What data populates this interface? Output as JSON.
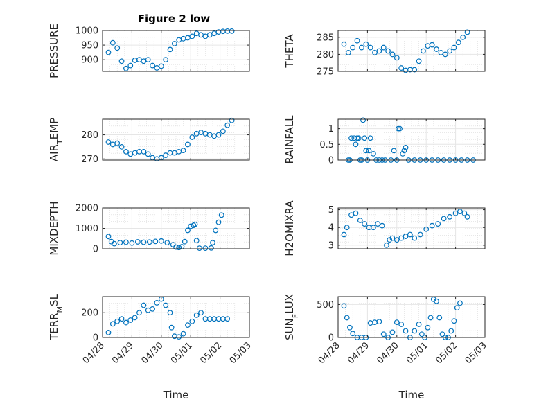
{
  "figure": {
    "title": "Figure 2 low",
    "x_axis_label": "Time",
    "x_ticks": [
      "04/28",
      "04/29",
      "04/30",
      "05/01",
      "05/02",
      "05/03"
    ],
    "marker_color": "#0072BD",
    "grid_color": "#e6e6e6"
  },
  "chart_data": [
    {
      "type": "scatter",
      "title": "Figure 2 low",
      "xlabel": "",
      "ylabel": "PRESSURE",
      "ylim": [
        860,
        1000
      ],
      "yticks": [
        "900",
        "950",
        "1000"
      ],
      "ytick_values": [
        900,
        950,
        1000
      ],
      "grid": true,
      "x": [
        0.2,
        0.35,
        0.5,
        0.65,
        0.8,
        0.95,
        1.1,
        1.25,
        1.4,
        1.55,
        1.7,
        1.85,
        2.0,
        2.15,
        2.3,
        2.45,
        2.6,
        2.75,
        2.9,
        3.05,
        3.2,
        3.35,
        3.5,
        3.65,
        3.8,
        3.95,
        4.1,
        4.25,
        4.4
      ],
      "y": [
        925,
        958,
        940,
        895,
        870,
        880,
        898,
        900,
        895,
        900,
        880,
        872,
        878,
        900,
        935,
        955,
        968,
        972,
        975,
        980,
        990,
        985,
        980,
        985,
        990,
        995,
        997,
        998,
        998
      ]
    },
    {
      "type": "scatter",
      "xlabel": "",
      "ylabel": "THETA",
      "ylim": [
        275,
        287
      ],
      "yticks": [
        "275",
        "280",
        "285"
      ],
      "ytick_values": [
        275,
        280,
        285
      ],
      "grid": true,
      "x": [
        0.2,
        0.35,
        0.5,
        0.65,
        0.8,
        0.95,
        1.1,
        1.25,
        1.4,
        1.55,
        1.7,
        1.85,
        2.0,
        2.15,
        2.3,
        2.45,
        2.6,
        2.75,
        2.9,
        3.05,
        3.2,
        3.35,
        3.5,
        3.65,
        3.8,
        3.95,
        4.1,
        4.25,
        4.4
      ],
      "y": [
        283,
        280.5,
        282,
        284,
        282,
        283,
        282,
        280.5,
        281,
        282,
        281,
        280,
        279,
        276,
        275.3,
        275.5,
        275.5,
        278,
        281,
        282.5,
        282.8,
        281.5,
        280.5,
        280,
        281,
        282,
        283.5,
        285,
        286.5
      ]
    },
    {
      "type": "scatter",
      "xlabel": "",
      "ylabel": "AIR_TEMP",
      "ylim": [
        269.5,
        286.5
      ],
      "yticks": [
        "270",
        "280"
      ],
      "ytick_values": [
        270,
        280
      ],
      "grid": true,
      "x": [
        0.2,
        0.35,
        0.5,
        0.65,
        0.8,
        0.95,
        1.1,
        1.25,
        1.4,
        1.55,
        1.7,
        1.85,
        2.0,
        2.15,
        2.3,
        2.45,
        2.6,
        2.75,
        2.9,
        3.05,
        3.2,
        3.35,
        3.5,
        3.65,
        3.8,
        3.95,
        4.1,
        4.25,
        4.4
      ],
      "y": [
        277,
        276,
        276.5,
        275,
        273,
        272,
        272.5,
        273,
        273,
        272,
        270.5,
        270,
        270.5,
        271.5,
        272.5,
        272.5,
        273,
        273.5,
        276,
        279,
        280.5,
        281,
        280.5,
        280,
        279.5,
        280,
        281.5,
        284,
        286
      ]
    },
    {
      "type": "scatter",
      "xlabel": "",
      "ylabel": "RAINFALL",
      "ylim": [
        0,
        1.3
      ],
      "yticks": [
        "0",
        "0.5",
        "1"
      ],
      "ytick_values": [
        0,
        0.5,
        1
      ],
      "grid": true,
      "x": [
        0.35,
        0.45,
        0.55,
        0.6,
        0.65,
        0.7,
        0.75,
        0.85,
        0.9,
        0.95,
        1.0,
        1.05,
        1.1,
        1.2,
        1.3,
        1.5,
        1.9,
        2.0,
        2.05,
        2.1,
        2.2,
        2.25,
        2.3,
        0.4,
        0.8,
        1.4,
        1.6,
        1.8,
        2.4,
        2.6,
        2.8,
        3.0,
        3.2,
        3.4,
        3.6,
        3.8,
        4.0,
        4.2,
        4.4,
        4.6
      ],
      "y": [
        0,
        0.7,
        0.7,
        0.5,
        0.7,
        0.7,
        0,
        1.27,
        0.7,
        0.3,
        0,
        0.3,
        0.7,
        0.2,
        0,
        0,
        0.3,
        0,
        1.0,
        1.0,
        0.2,
        0.3,
        0.4,
        0,
        0,
        0,
        0,
        0,
        0,
        0,
        0,
        0,
        0,
        0,
        0,
        0,
        0,
        0,
        0,
        0
      ]
    },
    {
      "type": "scatter",
      "xlabel": "",
      "ylabel": "MIXDEPTH",
      "ylim": [
        0,
        2000
      ],
      "yticks": [
        "0",
        "1000",
        "2000"
      ],
      "ytick_values": [
        0,
        1000,
        2000
      ],
      "grid": true,
      "x": [
        0.2,
        0.3,
        0.4,
        0.6,
        0.8,
        1.0,
        1.2,
        1.4,
        1.6,
        1.8,
        2.0,
        2.2,
        2.4,
        2.5,
        2.6,
        2.7,
        2.8,
        2.9,
        3.0,
        3.1,
        3.15,
        3.2,
        3.3,
        3.5,
        3.7,
        3.75,
        3.85,
        3.95,
        4.05
      ],
      "y": [
        600,
        350,
        250,
        300,
        320,
        280,
        340,
        320,
        330,
        360,
        380,
        300,
        200,
        80,
        60,
        100,
        350,
        900,
        1100,
        1150,
        1200,
        400,
        30,
        30,
        40,
        300,
        900,
        1300,
        1650
      ]
    },
    {
      "type": "scatter",
      "xlabel": "",
      "ylabel": "H2OMIXRA",
      "ylim": [
        2.8,
        5.1
      ],
      "yticks": [
        "3",
        "4",
        "5"
      ],
      "ytick_values": [
        3,
        4,
        5
      ],
      "grid": true,
      "x": [
        0.2,
        0.3,
        0.45,
        0.6,
        0.75,
        0.9,
        1.05,
        1.2,
        1.35,
        1.5,
        1.65,
        1.75,
        1.85,
        2.0,
        2.15,
        2.3,
        2.45,
        2.6,
        2.8,
        3.0,
        3.2,
        3.4,
        3.6,
        3.8,
        4.0,
        4.15,
        4.3,
        4.4
      ],
      "y": [
        3.6,
        4.0,
        4.7,
        4.8,
        4.4,
        4.2,
        4.0,
        4.0,
        4.2,
        4.1,
        3.0,
        3.3,
        3.4,
        3.3,
        3.4,
        3.5,
        3.6,
        3.4,
        3.6,
        3.9,
        4.1,
        4.2,
        4.5,
        4.6,
        4.8,
        4.9,
        4.8,
        4.6
      ]
    },
    {
      "type": "scatter",
      "xlabel": "Time",
      "ylabel": "TERR_MSL",
      "ylim": [
        0,
        330
      ],
      "yticks": [
        "0",
        "200"
      ],
      "ytick_values": [
        0,
        200
      ],
      "grid": true,
      "x": [
        0.2,
        0.35,
        0.5,
        0.65,
        0.8,
        0.95,
        1.1,
        1.25,
        1.4,
        1.55,
        1.7,
        1.85,
        2.0,
        2.15,
        2.3,
        2.35,
        2.45,
        2.6,
        2.75,
        2.9,
        3.05,
        3.2,
        3.35,
        3.5,
        3.65,
        3.8,
        3.95,
        4.1,
        4.25
      ],
      "y": [
        40,
        110,
        130,
        150,
        120,
        140,
        160,
        200,
        260,
        220,
        230,
        280,
        310,
        260,
        200,
        80,
        10,
        5,
        30,
        100,
        130,
        180,
        200,
        150,
        150,
        150,
        150,
        150,
        150
      ]
    },
    {
      "type": "scatter",
      "xlabel": "Time",
      "ylabel": "SUN_FLUX",
      "ylim": [
        0,
        620
      ],
      "yticks": [
        "0",
        "500"
      ],
      "ytick_values": [
        0,
        500
      ],
      "grid": true,
      "x": [
        0.2,
        0.3,
        0.4,
        0.5,
        0.65,
        0.8,
        0.95,
        1.1,
        1.25,
        1.4,
        1.55,
        1.7,
        1.85,
        2.0,
        2.15,
        2.3,
        2.45,
        2.6,
        2.75,
        2.85,
        2.95,
        3.05,
        3.15,
        3.25,
        3.35,
        3.45,
        3.55,
        3.65,
        3.75,
        3.85,
        3.95,
        4.05,
        4.15
      ],
      "y": [
        480,
        300,
        150,
        60,
        0,
        0,
        0,
        220,
        230,
        240,
        50,
        0,
        80,
        230,
        200,
        100,
        0,
        100,
        200,
        50,
        0,
        150,
        300,
        580,
        550,
        300,
        50,
        0,
        0,
        100,
        250,
        450,
        520
      ]
    }
  ]
}
